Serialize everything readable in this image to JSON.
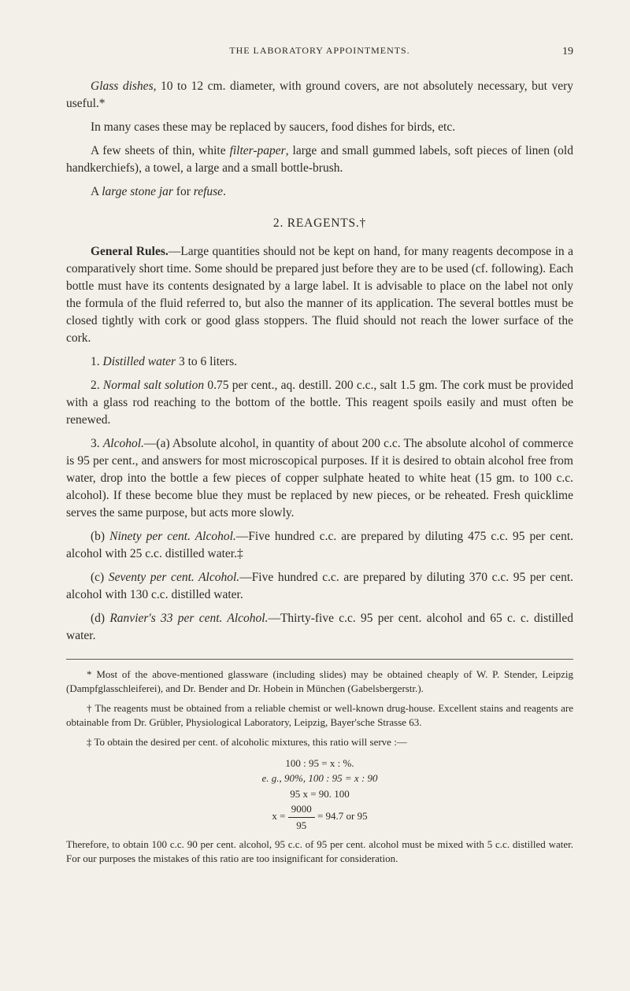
{
  "page": {
    "running_title": "THE LABORATORY APPOINTMENTS.",
    "page_number": "19"
  },
  "para": {
    "p1a": "Glass dishes",
    "p1b": ", 10 to 12 cm. diameter, with ground covers, are not absolutely necessary, but very useful.*",
    "p2": "In many cases these may be replaced by saucers, food dishes for birds, etc.",
    "p3a": "A few sheets of thin, white ",
    "p3b": "filter-paper",
    "p3c": ", large and small gummed labels, soft pieces of linen (old handkerchiefs), a towel, a large and a small bottle-brush.",
    "p4a": "A ",
    "p4b": "large stone jar",
    "p4c": " for ",
    "p4d": "refuse",
    "p4e": "."
  },
  "section": {
    "title": "2. REAGENTS.†"
  },
  "body": {
    "b1a": "General Rules.",
    "b1b": "—Large quantities should not be kept on hand, for many reagents decompose in a comparatively short time. Some should be prepared just before they are to be used (cf. following). Each bottle must have its contents designated by a large label. It is advisable to place on the label not only the formula of the fluid referred to, but also the manner of its application. The several bottles must be closed tightly with cork or good glass stoppers. The fluid should not reach the lower surface of the cork.",
    "b2a": "1. ",
    "b2b": "Distilled water",
    "b2c": " 3 to 6 liters.",
    "b3a": "2. ",
    "b3b": "Normal salt solution",
    "b3c": " 0.75 per cent., aq. destill. 200 c.c., salt 1.5 gm. The cork must be provided with a glass rod reaching to the bottom of the bottle. This reagent spoils easily and must often be renewed.",
    "b4a": "3. ",
    "b4b": "Alcohol.",
    "b4c": "—(a) Absolute alcohol, in quantity of about 200 c.c. The absolute alcohol of commerce is 95 per cent., and answers for most microscopical purposes. If it is desired to obtain alcohol free from water, drop into the bottle a few pieces of copper sulphate heated to white heat (15 gm. to 100 c.c. alcohol). If these become blue they must be replaced by new pieces, or be reheated. Fresh quicklime serves the same purpose, but acts more slowly.",
    "b5a": "(b) ",
    "b5b": "Ninety per cent. Alcohol.",
    "b5c": "—Five hundred c.c. are prepared by diluting 475 c.c. 95 per cent. alcohol with 25 c.c. distilled water.‡",
    "b6a": "(c) ",
    "b6b": "Seventy per cent. Alcohol.",
    "b6c": "—Five hundred c.c. are prepared by diluting 370 c.c. 95 per cent. alcohol with 130 c.c. distilled water.",
    "b7a": "(d) ",
    "b7b": "Ranvier's 33 per cent. Alcohol.",
    "b7c": "—Thirty-five c.c. 95 per cent. alcohol and 65 c. c. distilled water."
  },
  "footnotes": {
    "f1": "* Most of the above-mentioned glassware (including slides) may be obtained cheaply of W. P. Stender, Leipzig (Dampfglasschleiferei), and Dr. Bender and Dr. Hobein in München (Gabelsbergerstr.).",
    "f2": "† The reagents must be obtained from a reliable chemist or well-known drug-house. Excellent stains and reagents are obtainable from Dr. Grübler, Physiological Laboratory, Leipzig, Bayer'sche Strasse 63.",
    "f3": "‡ To obtain the desired per cent. of alcoholic mixtures, this ratio will serve :—",
    "eq1": "100 : 95 = x : %.",
    "eq2": "e. g., 90%, 100 : 95 = x : 90",
    "eq3": "95 x = 90. 100",
    "eq4_pre": "x = ",
    "eq4_num": "9000",
    "eq4_den": "95",
    "eq4_post": " = 94.7 or 95",
    "f4": "Therefore, to obtain 100 c.c. 90 per cent. alcohol, 95 c.c. of 95 per cent. alcohol must be mixed with 5 c.c. distilled water. For our purposes the mistakes of this ratio are too insignificant for consideration."
  }
}
